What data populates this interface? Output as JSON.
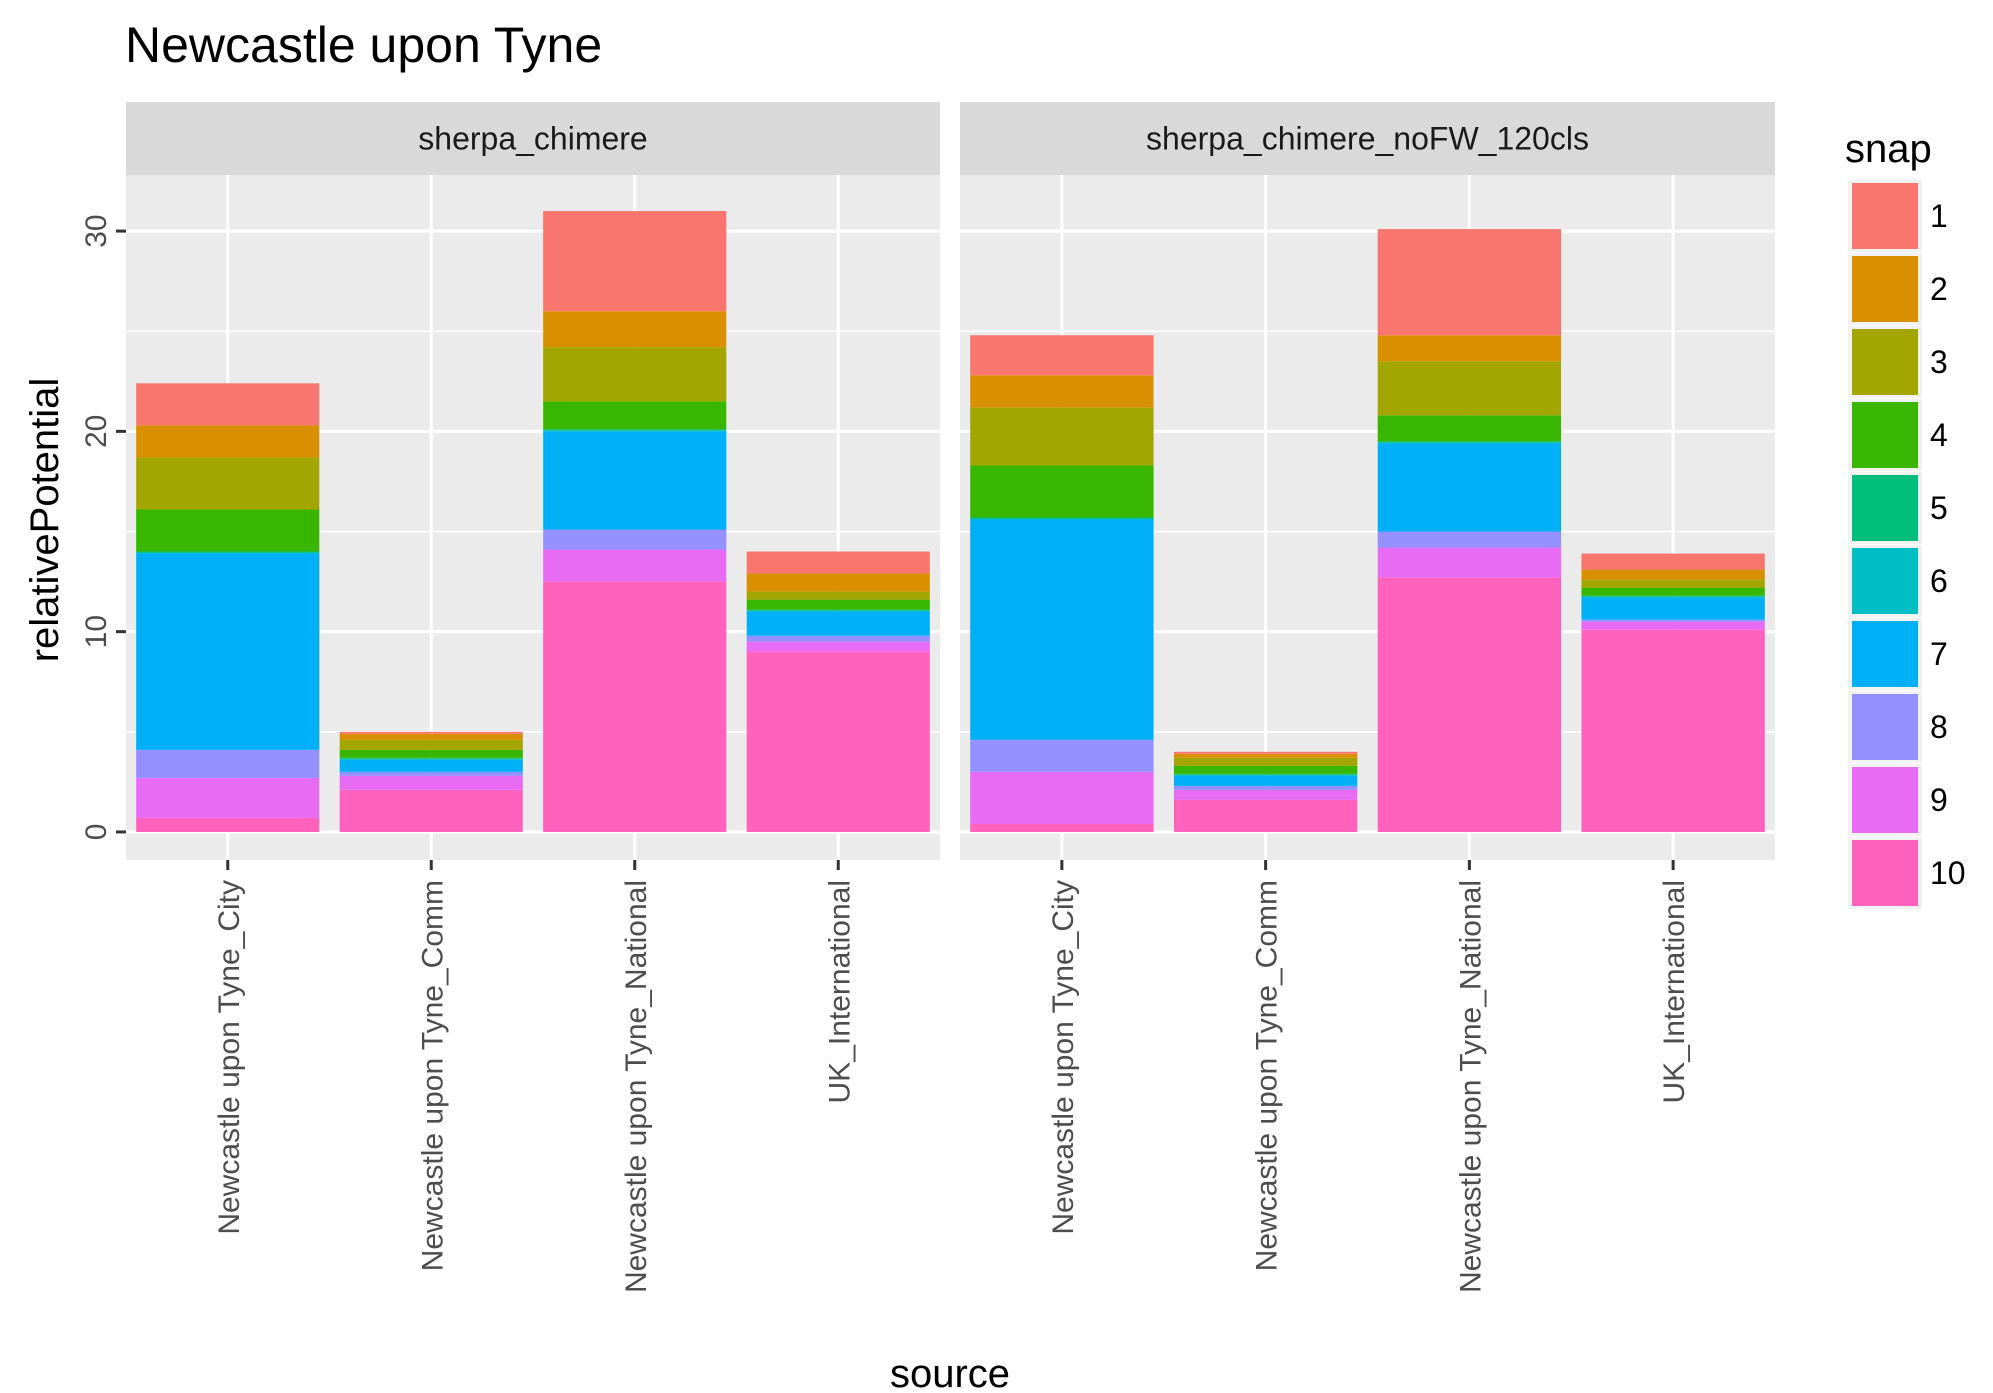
{
  "chart_data": {
    "type": "bar",
    "stacked": true,
    "title": "Newcastle upon Tyne",
    "xlabel": "source",
    "ylabel": "relativePotential",
    "ylim": [
      -1.4,
      32.8
    ],
    "yticks": [
      0,
      10,
      20,
      30
    ],
    "grid": true,
    "legend": {
      "title": "snap",
      "position": "right",
      "entries": [
        "1",
        "2",
        "3",
        "4",
        "5",
        "6",
        "7",
        "8",
        "9",
        "10"
      ]
    },
    "colors": {
      "1": "#F8766D",
      "2": "#D89000",
      "3": "#A3A500",
      "4": "#39B600",
      "5": "#00BF7D",
      "6": "#00BFC4",
      "7": "#00B0F6",
      "8": "#9590FF",
      "9": "#E76BF3",
      "10": "#FF62BC"
    },
    "categories": [
      "Newcastle upon Tyne_City",
      "Newcastle upon Tyne_Comm",
      "Newcastle upon Tyne_National",
      "UK_International"
    ],
    "facets": [
      {
        "name": "sherpa_chimere",
        "bars": [
          {
            "category": "Newcastle upon Tyne_City",
            "segments": {
              "10": 0.7,
              "9": 2.0,
              "8": 1.4,
              "7": 9.8,
              "6": 0.05,
              "5": 0.05,
              "4": 2.1,
              "3": 2.6,
              "2": 1.6,
              "1": 2.1
            }
          },
          {
            "category": "Newcastle upon Tyne_Comm",
            "segments": {
              "10": 2.1,
              "9": 0.7,
              "8": 0.2,
              "7": 0.6,
              "6": 0.05,
              "5": 0.05,
              "4": 0.4,
              "3": 0.5,
              "2": 0.3,
              "1": 0.1
            }
          },
          {
            "category": "Newcastle upon Tyne_National",
            "segments": {
              "10": 12.5,
              "9": 1.6,
              "8": 1.0,
              "7": 4.9,
              "6": 0.05,
              "5": 0.05,
              "4": 1.4,
              "3": 2.7,
              "2": 1.8,
              "1": 5.0
            }
          },
          {
            "category": "UK_International",
            "segments": {
              "10": 9.0,
              "9": 0.5,
              "8": 0.3,
              "7": 1.2,
              "6": 0.05,
              "5": 0.05,
              "4": 0.5,
              "3": 0.4,
              "2": 0.9,
              "1": 1.1
            }
          }
        ]
      },
      {
        "name": "sherpa_chimere_noFW_120cls",
        "bars": [
          {
            "category": "Newcastle upon Tyne_City",
            "segments": {
              "10": 0.4,
              "9": 2.6,
              "8": 1.6,
              "7": 11.0,
              "6": 0.05,
              "5": 0.05,
              "4": 2.6,
              "3": 2.9,
              "2": 1.6,
              "1": 2.0
            }
          },
          {
            "category": "Newcastle upon Tyne_Comm",
            "segments": {
              "10": 1.6,
              "9": 0.5,
              "8": 0.2,
              "7": 0.5,
              "6": 0.05,
              "5": 0.05,
              "4": 0.4,
              "3": 0.4,
              "2": 0.2,
              "1": 0.1
            }
          },
          {
            "category": "Newcastle upon Tyne_National",
            "segments": {
              "10": 12.7,
              "9": 1.5,
              "8": 0.8,
              "7": 4.4,
              "6": 0.05,
              "5": 0.05,
              "4": 1.3,
              "3": 2.7,
              "2": 1.3,
              "1": 5.3
            }
          },
          {
            "category": "UK_International",
            "segments": {
              "10": 10.1,
              "9": 0.4,
              "8": 0.1,
              "7": 1.1,
              "6": 0.05,
              "5": 0.05,
              "4": 0.4,
              "3": 0.4,
              "2": 0.5,
              "1": 0.8
            }
          }
        ]
      }
    ]
  }
}
